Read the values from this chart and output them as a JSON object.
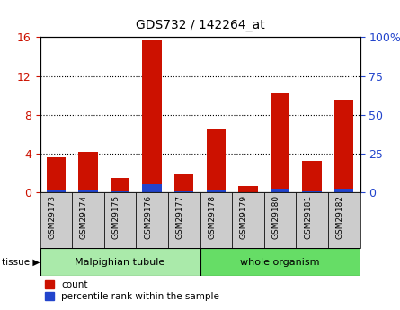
{
  "title": "GDS732 / 142264_at",
  "samples": [
    "GSM29173",
    "GSM29174",
    "GSM29175",
    "GSM29176",
    "GSM29177",
    "GSM29178",
    "GSM29179",
    "GSM29180",
    "GSM29181",
    "GSM29182"
  ],
  "count_values": [
    3.6,
    4.2,
    1.5,
    15.7,
    1.8,
    6.5,
    0.6,
    10.3,
    3.2,
    9.5
  ],
  "percentile_values": [
    1.0,
    1.6,
    0.6,
    5.0,
    0.5,
    1.5,
    0.1,
    2.2,
    0.7,
    2.2
  ],
  "tissue_groups": [
    {
      "label": "Malpighian tubule",
      "start": 0,
      "end": 5,
      "color": "#aaeaaa"
    },
    {
      "label": "whole organism",
      "start": 5,
      "end": 10,
      "color": "#66dd66"
    }
  ],
  "left_ylim": [
    0,
    16
  ],
  "right_ylim": [
    0,
    100
  ],
  "left_yticks": [
    0,
    4,
    8,
    12,
    16
  ],
  "right_yticks": [
    0,
    25,
    50,
    75,
    100
  ],
  "right_yticklabels": [
    "0",
    "25",
    "50",
    "75",
    "100%"
  ],
  "bar_color_red": "#cc1100",
  "bar_color_blue": "#2244cc",
  "bar_width": 0.6,
  "grid_color": "black",
  "bg_color": "#ffffff",
  "plot_bg": "#ffffff",
  "tick_label_color_left": "#cc1100",
  "tick_label_color_right": "#2244cc",
  "legend_count_label": "count",
  "legend_percentile_label": "percentile rank within the sample",
  "x_tick_bg": "#cccccc"
}
